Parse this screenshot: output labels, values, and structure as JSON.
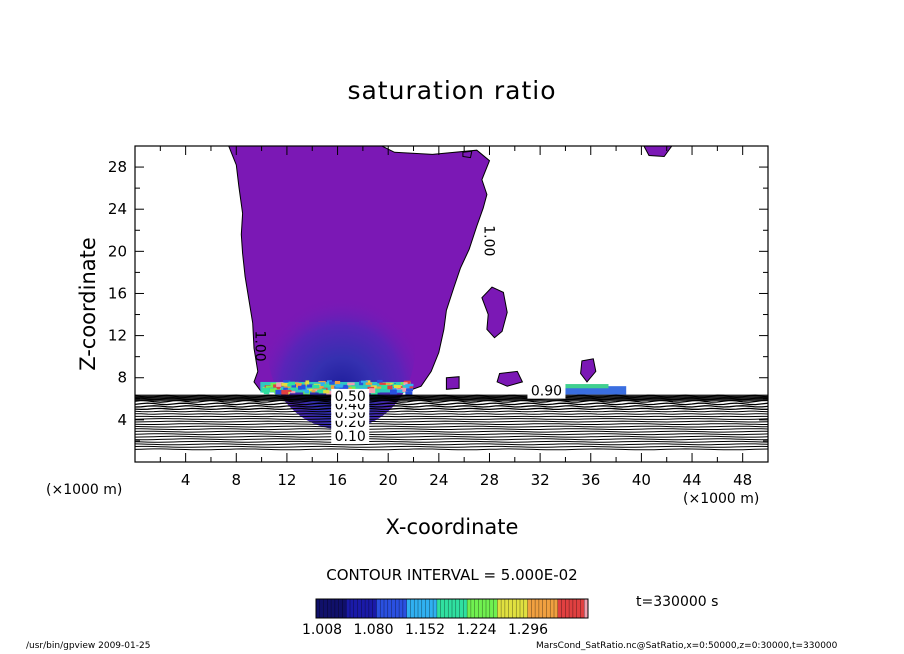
{
  "chart_data": {
    "type": "heatmap",
    "title": "saturation ratio",
    "xlabel": "X-coordinate",
    "ylabel": "Z-coordinate",
    "x_unit": "(×1000 m)",
    "y_unit": "(×1000 m)",
    "xlim": [
      0,
      50
    ],
    "ylim": [
      0,
      30
    ],
    "x_ticks": [
      "4",
      "8",
      "12",
      "16",
      "20",
      "24",
      "28",
      "32",
      "36",
      "40",
      "44",
      "48"
    ],
    "x_tick_values": [
      4,
      8,
      12,
      16,
      20,
      24,
      28,
      32,
      36,
      40,
      44,
      48
    ],
    "y_ticks": [
      "4",
      "8",
      "12",
      "16",
      "20",
      "24",
      "28"
    ],
    "y_tick_values": [
      4,
      8,
      12,
      16,
      20,
      24,
      28
    ],
    "contour_labels": [
      {
        "text": "1.00",
        "x": 27.6,
        "z": 21.0,
        "rotate": 90
      },
      {
        "text": "1.00",
        "x": 9.5,
        "z": 11.0,
        "rotate": 90
      },
      {
        "text": "0.10",
        "x": 17.0,
        "z": 2.0,
        "rotate": 0
      },
      {
        "text": "0.20",
        "x": 17.0,
        "z": 3.3,
        "rotate": 0
      },
      {
        "text": "0.30",
        "x": 17.0,
        "z": 4.2,
        "rotate": 0
      },
      {
        "text": "0.40",
        "x": 17.0,
        "z": 5.0,
        "rotate": 0
      },
      {
        "text": "0.50",
        "x": 17.0,
        "z": 5.8,
        "rotate": 0
      },
      {
        "text": "0.90",
        "x": 32.5,
        "z": 6.3,
        "rotate": 0
      }
    ],
    "contour_levels": [
      0.05,
      0.1,
      0.15,
      0.2,
      0.25,
      0.3,
      0.35,
      0.4,
      0.45,
      0.5,
      0.55,
      0.6,
      0.65,
      0.7,
      0.75,
      0.8,
      0.85,
      0.9,
      0.95,
      1.0
    ],
    "contour_interval_text": "CONTOUR INTERVAL = 5.000E-02",
    "time_text": "t=330000 s",
    "colorbar": {
      "min": 1.008,
      "max": 1.296,
      "labels": [
        "1.008",
        "1.080",
        "1.152",
        "1.224",
        "1.296"
      ],
      "label_values": [
        1.008,
        1.08,
        1.152,
        1.224,
        1.296
      ],
      "colors": [
        "#10106a",
        "#1a1aa8",
        "#2a50e0",
        "#30b0f0",
        "#30e0a0",
        "#70f050",
        "#e0e040",
        "#f0a040",
        "#e04040",
        "#f0a0b0"
      ]
    },
    "fill_color_supersaturated": "#7b18b5",
    "grid": false
  },
  "footer": {
    "left": "/usr/bin/gpview   2009-01-25",
    "right": "MarsCond_SatRatio.nc@SatRatio,x=0:50000,z=0:30000,t=330000"
  }
}
